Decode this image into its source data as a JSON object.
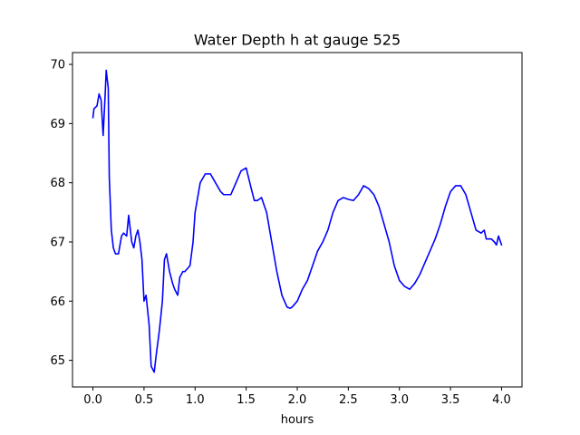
{
  "chart_data": {
    "type": "line",
    "title": "Water Depth h at gauge 525",
    "xlabel": "hours",
    "ylabel": "",
    "xlim": [
      -0.2,
      4.2
    ],
    "ylim": [
      64.55,
      70.2
    ],
    "xticks": [
      0.0,
      0.5,
      1.0,
      1.5,
      2.0,
      2.5,
      3.0,
      3.5,
      4.0
    ],
    "xtick_labels": [
      "0.0",
      "0.5",
      "1.0",
      "1.5",
      "2.0",
      "2.5",
      "3.0",
      "3.5",
      "4.0"
    ],
    "yticks": [
      65,
      66,
      67,
      68,
      69,
      70
    ],
    "ytick_labels": [
      "65",
      "66",
      "67",
      "68",
      "69",
      "70"
    ],
    "grid": false,
    "legend": "none",
    "series": [
      {
        "color": "#0000ff",
        "x": [
          0.0,
          0.01,
          0.04,
          0.06,
          0.08,
          0.1,
          0.12,
          0.13,
          0.15,
          0.16,
          0.18,
          0.2,
          0.22,
          0.25,
          0.28,
          0.3,
          0.33,
          0.35,
          0.38,
          0.4,
          0.42,
          0.44,
          0.46,
          0.48,
          0.5,
          0.52,
          0.55,
          0.57,
          0.6,
          0.62,
          0.65,
          0.68,
          0.7,
          0.72,
          0.75,
          0.78,
          0.8,
          0.83,
          0.85,
          0.88,
          0.9,
          0.95,
          0.98,
          1.0,
          1.05,
          1.1,
          1.15,
          1.2,
          1.25,
          1.28,
          1.32,
          1.35,
          1.4,
          1.45,
          1.5,
          1.55,
          1.58,
          1.61,
          1.65,
          1.7,
          1.75,
          1.8,
          1.85,
          1.9,
          1.93,
          1.95,
          2.0,
          2.05,
          2.1,
          2.15,
          2.2,
          2.25,
          2.3,
          2.35,
          2.4,
          2.45,
          2.5,
          2.55,
          2.6,
          2.65,
          2.7,
          2.75,
          2.8,
          2.85,
          2.9,
          2.95,
          3.0,
          3.05,
          3.1,
          3.15,
          3.2,
          3.25,
          3.3,
          3.35,
          3.4,
          3.45,
          3.5,
          3.55,
          3.6,
          3.65,
          3.7,
          3.75,
          3.8,
          3.83,
          3.85,
          3.9,
          3.93,
          3.95,
          3.97,
          4.0
        ],
        "y": [
          69.1,
          69.25,
          69.3,
          69.5,
          69.4,
          68.8,
          69.5,
          69.9,
          69.6,
          68.1,
          67.2,
          66.9,
          66.8,
          66.8,
          67.1,
          67.15,
          67.1,
          67.45,
          67.0,
          66.9,
          67.1,
          67.2,
          67.0,
          66.7,
          66.0,
          66.1,
          65.6,
          64.9,
          64.8,
          65.1,
          65.5,
          66.0,
          66.7,
          66.8,
          66.5,
          66.3,
          66.2,
          66.1,
          66.4,
          66.5,
          66.5,
          66.6,
          67.0,
          67.5,
          68.0,
          68.15,
          68.15,
          68.0,
          67.85,
          67.8,
          67.8,
          67.8,
          68.0,
          68.2,
          68.25,
          67.9,
          67.7,
          67.7,
          67.75,
          67.5,
          67.0,
          66.5,
          66.1,
          65.9,
          65.88,
          65.9,
          66.0,
          66.2,
          66.35,
          66.6,
          66.85,
          67.0,
          67.2,
          67.5,
          67.7,
          67.75,
          67.72,
          67.7,
          67.8,
          67.95,
          67.9,
          67.8,
          67.6,
          67.3,
          67.0,
          66.6,
          66.35,
          66.25,
          66.2,
          66.3,
          66.45,
          66.65,
          66.85,
          67.05,
          67.3,
          67.6,
          67.85,
          67.95,
          67.95,
          67.8,
          67.5,
          67.2,
          67.15,
          67.2,
          67.05,
          67.05,
          67.0,
          66.95,
          67.1,
          66.95
        ]
      }
    ]
  }
}
